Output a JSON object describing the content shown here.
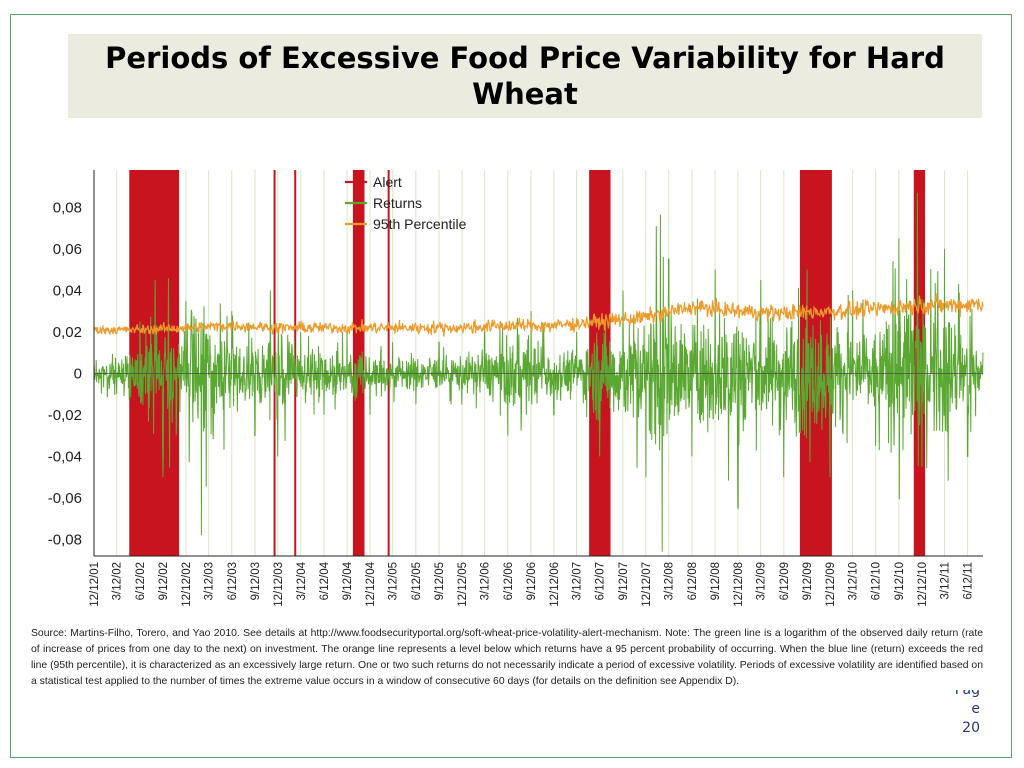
{
  "slide": {
    "title": "Periods of Excessive Food Price Variability for Hard Wheat",
    "page_fragment": "Pag",
    "page_letter": "e",
    "page_number": "20"
  },
  "figure": {
    "source_note": "Source: Martins-Filho, Torero, and Yao 2010. See details at http://www.foodsecurityportal.org/soft-wheat-price-volatility-alert-mechanism. Note: The green line is a logarithm of the observed daily return (rate of increase of prices from one day to the next) on investment. The orange line represents a level below which returns have a 95 percent probability of occurring. When the blue line (return) exceeds the red line (95th percentile), it is characterized as an excessively large return. One or two such returns do not necessarily indicate a period of excessive volatility. Periods of excessive volatility are identified based on a statistical test applied to the number of times the extreme value occurs in a window of consecutive 60 days (for details on the definition see Appendix D)."
  },
  "colors": {
    "alert": "#c8141e",
    "returns": "#5aa832",
    "percentile": "#ee9a2a",
    "quarter_gridline": "#d7e8c6",
    "axis": "#222222"
  },
  "chart_data": {
    "type": "line",
    "x_start": "12/12/01",
    "x_end": "8/12/11",
    "ylim": [
      -0.088,
      0.098
    ],
    "yticks": [
      0.08,
      0.06,
      0.04,
      0.02,
      0,
      -0.02,
      -0.04,
      -0.06,
      -0.08
    ],
    "ytick_labels": [
      "0,08",
      "0,06",
      "0,04",
      "0,02",
      "0",
      "-0,02",
      "-0,04",
      "-0,06",
      "-0,08"
    ],
    "xtick_labels": [
      "12/12/01",
      "3/12/02",
      "6/12/02",
      "9/12/02",
      "12/12/02",
      "3/12/03",
      "6/12/03",
      "9/12/03",
      "12/12/03",
      "3/12/04",
      "6/12/04",
      "9/12/04",
      "12/12/04",
      "3/12/05",
      "6/12/05",
      "9/12/05",
      "12/12/05",
      "3/12/06",
      "6/12/06",
      "9/12/06",
      "12/12/06",
      "3/12/07",
      "6/12/07",
      "9/12/07",
      "12/12/07",
      "3/12/08",
      "6/12/08",
      "9/12/08",
      "12/12/08",
      "3/12/09",
      "6/12/09",
      "9/12/09",
      "12/12/09",
      "3/12/10",
      "6/12/10",
      "9/12/10",
      "12/12/10",
      "3/12/11",
      "6/12/11"
    ],
    "legend_placement": "top-center",
    "series": [
      {
        "name": "Alert",
        "kind": "shaded periods",
        "periods": [
          [
            "5/1/02",
            "11/15/02"
          ],
          [
            "11/25/03",
            "12/1/03"
          ],
          [
            "2/15/04",
            "2/20/04"
          ],
          [
            "10/5/04",
            "11/20/04"
          ],
          [
            "2/20/05",
            "2/26/05"
          ],
          [
            "5/1/07",
            "7/25/07"
          ],
          [
            "8/15/09",
            "12/20/09"
          ],
          [
            "11/10/10",
            "12/25/10"
          ]
        ]
      },
      {
        "name": "Returns",
        "kind": "daily log return",
        "summary": {
          "baseline": 0,
          "typical_range": [
            -0.025,
            0.025
          ],
          "calm_range_2005_2006": [
            -0.015,
            0.015
          ],
          "max": 0.087,
          "max_date": "11/25/10",
          "min": -0.086,
          "min_date": "2/15/08"
        },
        "points": [
          [
            "12/12/01",
            0.005
          ],
          [
            "3/12/02",
            -0.01
          ],
          [
            "6/12/02",
            0.025
          ],
          [
            "8/12/02",
            0.045
          ],
          [
            "9/12/02",
            -0.05
          ],
          [
            "12/12/02",
            0.035
          ],
          [
            "2/12/03",
            -0.078
          ],
          [
            "6/12/03",
            0.03
          ],
          [
            "9/12/03",
            -0.03
          ],
          [
            "11/12/03",
            0.04
          ],
          [
            "12/12/03",
            -0.04
          ],
          [
            "3/12/04",
            0.02
          ],
          [
            "6/12/04",
            -0.02
          ],
          [
            "9/12/04",
            0.02
          ],
          [
            "12/12/04",
            -0.02
          ],
          [
            "3/12/05",
            0.015
          ],
          [
            "6/12/05",
            -0.015
          ],
          [
            "9/12/05",
            0.015
          ],
          [
            "12/12/05",
            -0.015
          ],
          [
            "3/12/06",
            0.02
          ],
          [
            "6/12/06",
            -0.03
          ],
          [
            "9/12/06",
            0.03
          ],
          [
            "12/12/06",
            -0.02
          ],
          [
            "3/12/07",
            0.02
          ],
          [
            "6/12/07",
            -0.04
          ],
          [
            "9/12/07",
            0.04
          ],
          [
            "12/12/07",
            -0.05
          ],
          [
            "2/15/08",
            -0.086
          ],
          [
            "3/12/08",
            0.055
          ],
          [
            "6/12/08",
            -0.04
          ],
          [
            "9/12/08",
            0.05
          ],
          [
            "12/12/08",
            -0.065
          ],
          [
            "3/12/09",
            0.045
          ],
          [
            "6/12/09",
            -0.05
          ],
          [
            "9/12/09",
            0.05
          ],
          [
            "12/12/09",
            -0.05
          ],
          [
            "3/12/10",
            0.04
          ],
          [
            "6/12/10",
            -0.035
          ],
          [
            "9/12/10",
            0.065
          ],
          [
            "11/25/10",
            0.087
          ],
          [
            "12/12/10",
            -0.045
          ],
          [
            "3/12/11",
            0.06
          ],
          [
            "6/12/11",
            -0.04
          ],
          [
            "8/12/11",
            0.01
          ]
        ]
      },
      {
        "name": "95th Percentile",
        "kind": "threshold",
        "points": [
          [
            "12/12/01",
            0.021
          ],
          [
            "6/12/02",
            0.021
          ],
          [
            "12/12/02",
            0.022
          ],
          [
            "6/12/03",
            0.023
          ],
          [
            "12/12/03",
            0.022
          ],
          [
            "6/12/04",
            0.022
          ],
          [
            "12/12/04",
            0.022
          ],
          [
            "6/12/05",
            0.022
          ],
          [
            "12/12/05",
            0.022
          ],
          [
            "6/12/06",
            0.023
          ],
          [
            "12/12/06",
            0.023
          ],
          [
            "6/12/07",
            0.025
          ],
          [
            "12/12/07",
            0.027
          ],
          [
            "6/12/08",
            0.032
          ],
          [
            "12/12/08",
            0.03
          ],
          [
            "6/12/09",
            0.029
          ],
          [
            "12/12/09",
            0.03
          ],
          [
            "6/12/10",
            0.031
          ],
          [
            "12/12/10",
            0.033
          ],
          [
            "6/12/11",
            0.033
          ],
          [
            "8/12/11",
            0.034
          ]
        ]
      }
    ]
  }
}
